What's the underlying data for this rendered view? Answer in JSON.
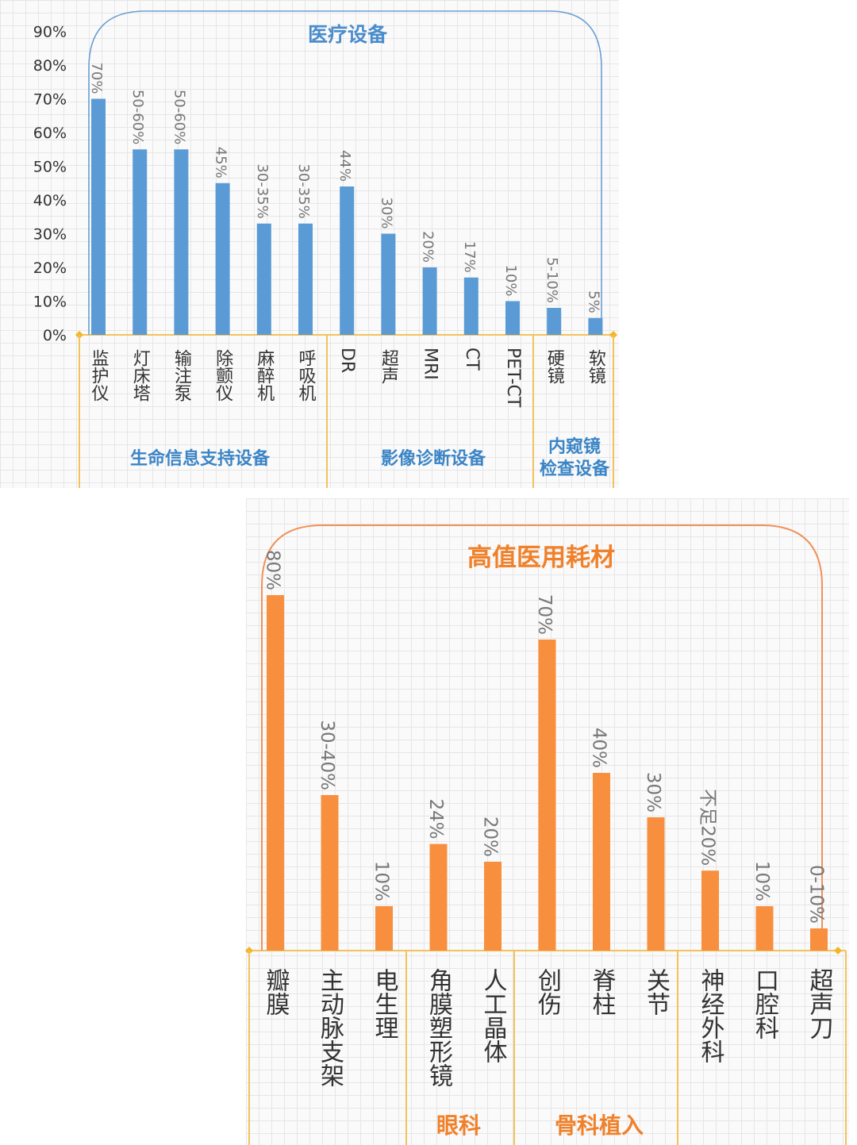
{
  "chart_data": [
    {
      "type": "bar",
      "title": "医疗设备",
      "yticks": [
        "0%",
        "10%",
        "20%",
        "30%",
        "40%",
        "50%",
        "60%",
        "70%",
        "80%",
        "90%"
      ],
      "ylim": [
        0,
        90
      ],
      "categories": [
        "监护仪",
        "灯床塔",
        "输注泵",
        "除颤仪",
        "麻醉机",
        "呼吸机",
        "DR",
        "超声",
        "MRI",
        "CT",
        "PET-CT",
        "硬镜",
        "软镜"
      ],
      "values": [
        70,
        55,
        55,
        45,
        33,
        33,
        44,
        30,
        20,
        17,
        10,
        8,
        5
      ],
      "data_labels": [
        "70%",
        "50-60%",
        "50-60%",
        "45%",
        "30-35%",
        "30-35%",
        "44%",
        "30%",
        "20%",
        "17%",
        "10%",
        "5-10%",
        "5%"
      ],
      "groups": [
        {
          "label": "生命信息支持设备",
          "start": 0,
          "end": 5
        },
        {
          "label": "影像诊断设备",
          "start": 6,
          "end": 10
        },
        {
          "label": "内窥镜\n检查设备",
          "start": 11,
          "end": 12
        }
      ],
      "color": "#5b9bd5",
      "accent": "#4a8ccc",
      "grid": true
    },
    {
      "type": "bar",
      "title": "高值医用耗材",
      "ylim": [
        0,
        90
      ],
      "categories": [
        "瓣膜",
        "主动脉支架",
        "电生理",
        "角膜塑形镜",
        "人工晶体",
        "创伤",
        "脊柱",
        "关节",
        "神经外科",
        "口腔科",
        "超声刀"
      ],
      "values": [
        80,
        35,
        10,
        24,
        20,
        70,
        40,
        30,
        18,
        10,
        5
      ],
      "data_labels": [
        "80%",
        "30-40%",
        "10%",
        "24%",
        "20%",
        "70%",
        "40%",
        "30%",
        "不足20%",
        "10%",
        "0-10%"
      ],
      "groups": [
        {
          "label": "",
          "start": 0,
          "end": 2
        },
        {
          "label": "眼科",
          "start": 3,
          "end": 4
        },
        {
          "label": "骨科植入",
          "start": 5,
          "end": 7
        },
        {
          "label": "",
          "start": 8,
          "end": 10
        }
      ],
      "color": "#f88f3f",
      "accent": "#f0812a",
      "grid": true
    }
  ]
}
